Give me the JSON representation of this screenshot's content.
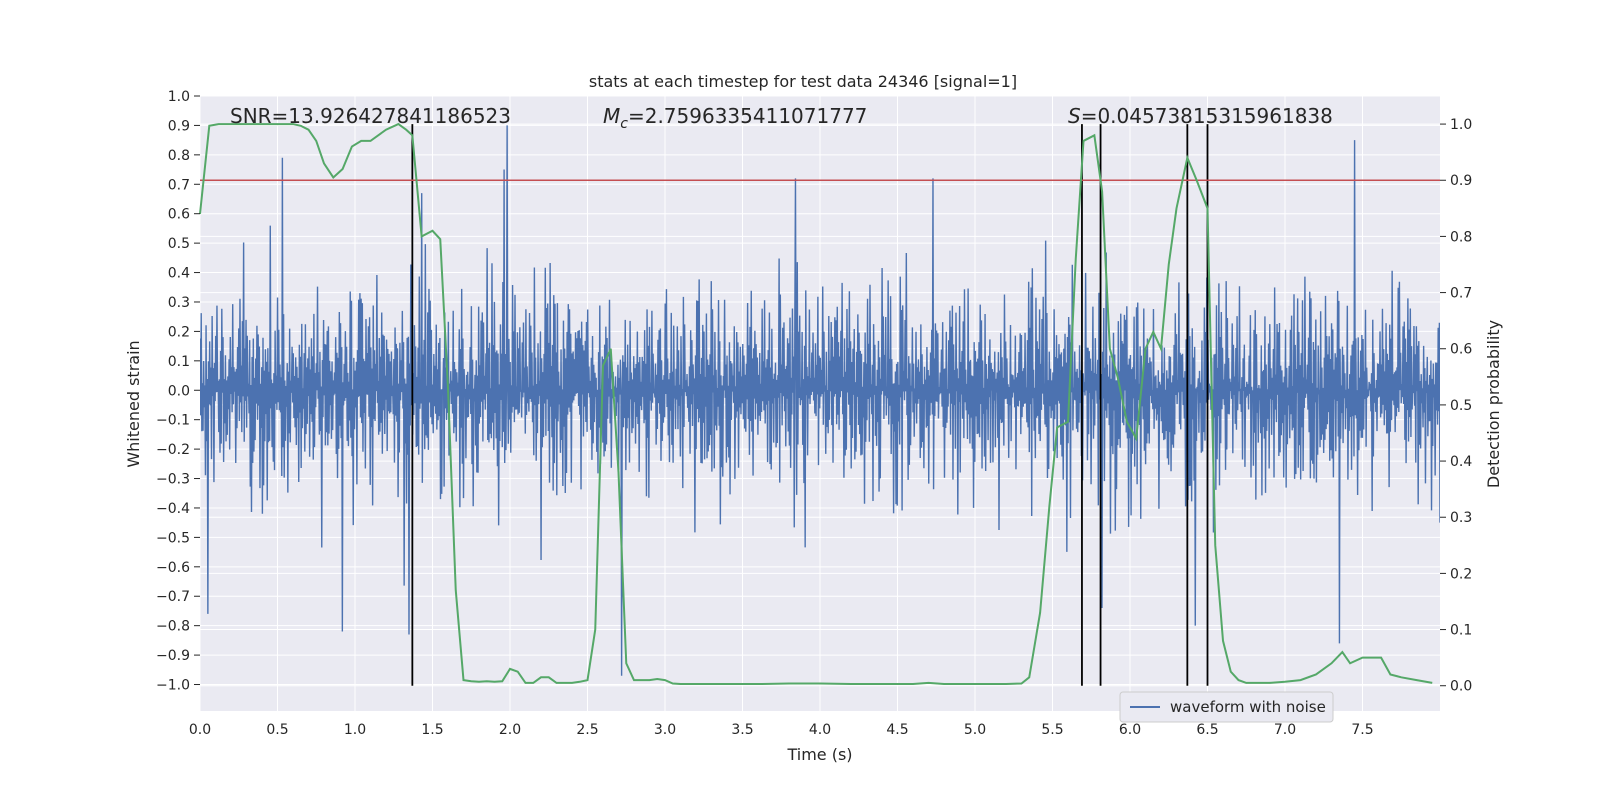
{
  "chart_data": {
    "type": "line",
    "title": "stats at each timestep for test data 24346 [signal=1]",
    "xlabel": "Time (s)",
    "ylabel": "Whitened strain",
    "y2label": "Detection probability",
    "xlim": [
      0.0,
      8.0
    ],
    "ylim": [
      -1.09,
      1.0
    ],
    "y2lim": [
      -0.045,
      1.05
    ],
    "x_ticks": [
      "0.0",
      "0.5",
      "1.0",
      "1.5",
      "2.0",
      "2.5",
      "3.0",
      "3.5",
      "4.0",
      "4.5",
      "5.0",
      "5.5",
      "6.0",
      "6.5",
      "7.0",
      "7.5"
    ],
    "y_ticks": [
      "1.0",
      "0.9",
      "0.8",
      "0.7",
      "0.6",
      "0.5",
      "0.4",
      "0.3",
      "0.2",
      "0.1",
      "0.0",
      "−0.1",
      "−0.2",
      "−0.3",
      "−0.4",
      "−0.5",
      "−0.6",
      "−0.7",
      "−0.8",
      "−0.9",
      "−1.0"
    ],
    "y2_ticks": [
      "1.0",
      "0.9",
      "0.8",
      "0.7",
      "0.6",
      "0.5",
      "0.4",
      "0.3",
      "0.2",
      "0.1",
      "0.0"
    ],
    "annotations": {
      "snr": "SNR=13.926427841186523",
      "mc": "=2.7596335411071777",
      "mc_symbol": "M",
      "mc_sub": "c",
      "s": "=0.04573815315961838",
      "s_symbol": "S"
    },
    "legend": {
      "label": "waveform with noise",
      "position": "lower-right"
    },
    "threshold": 0.9,
    "vertical_markers": [
      1.37,
      5.69,
      5.81,
      6.37,
      6.5
    ],
    "strain": {
      "name": "waveform with noise",
      "num_samples": 2048,
      "typical_amplitude": 0.4,
      "spikes": [
        {
          "x": 0.53,
          "y": 0.79
        },
        {
          "x": 1.96,
          "y": 0.75
        },
        {
          "x": 1.98,
          "y": 0.9
        },
        {
          "x": 2.72,
          "y": -0.97
        },
        {
          "x": 0.05,
          "y": -0.76
        },
        {
          "x": 0.92,
          "y": -0.82
        },
        {
          "x": 1.35,
          "y": -0.83
        },
        {
          "x": 3.84,
          "y": 0.72
        },
        {
          "x": 4.73,
          "y": 0.72
        },
        {
          "x": 7.45,
          "y": 0.85
        },
        {
          "x": 7.35,
          "y": -0.86
        },
        {
          "x": 6.42,
          "y": -0.8
        },
        {
          "x": 5.82,
          "y": -0.74
        },
        {
          "x": 1.43,
          "y": 0.67
        }
      ]
    },
    "probability": {
      "name": "Detection probability",
      "x": [
        0.0,
        0.06,
        0.12,
        0.2,
        0.3,
        0.4,
        0.5,
        0.6,
        0.65,
        0.7,
        0.75,
        0.8,
        0.86,
        0.92,
        0.98,
        1.04,
        1.1,
        1.2,
        1.28,
        1.33,
        1.37,
        1.43,
        1.5,
        1.55,
        1.6,
        1.65,
        1.7,
        1.75,
        1.8,
        1.85,
        1.9,
        1.95,
        2.0,
        2.05,
        2.1,
        2.15,
        2.2,
        2.25,
        2.3,
        2.35,
        2.4,
        2.45,
        2.5,
        2.55,
        2.6,
        2.65,
        2.7,
        2.75,
        2.8,
        2.85,
        2.9,
        2.95,
        3.0,
        3.05,
        3.1,
        3.2,
        3.4,
        3.6,
        3.8,
        4.0,
        4.2,
        4.4,
        4.6,
        4.7,
        4.8,
        5.0,
        5.2,
        5.3,
        5.35,
        5.42,
        5.48,
        5.53,
        5.6,
        5.65,
        5.7,
        5.77,
        5.82,
        5.87,
        5.92,
        5.98,
        6.04,
        6.1,
        6.15,
        6.2,
        6.25,
        6.3,
        6.37,
        6.43,
        6.5,
        6.55,
        6.6,
        6.65,
        6.7,
        6.75,
        6.8,
        6.9,
        7.0,
        7.1,
        7.2,
        7.3,
        7.37,
        7.42,
        7.5,
        7.55,
        7.62,
        7.68,
        7.75,
        7.85,
        7.95
      ],
      "y": [
        0.84,
        0.997,
        1.0,
        1.0,
        1.0,
        1.0,
        1.0,
        1.0,
        0.997,
        0.99,
        0.97,
        0.93,
        0.905,
        0.92,
        0.96,
        0.97,
        0.97,
        0.99,
        1.0,
        0.99,
        0.98,
        0.8,
        0.81,
        0.795,
        0.53,
        0.17,
        0.01,
        0.008,
        0.007,
        0.008,
        0.007,
        0.008,
        0.03,
        0.025,
        0.005,
        0.005,
        0.015,
        0.015,
        0.005,
        0.005,
        0.005,
        0.007,
        0.01,
        0.1,
        0.57,
        0.6,
        0.38,
        0.04,
        0.01,
        0.01,
        0.01,
        0.012,
        0.01,
        0.004,
        0.003,
        0.003,
        0.003,
        0.003,
        0.004,
        0.004,
        0.003,
        0.003,
        0.003,
        0.005,
        0.003,
        0.003,
        0.003,
        0.004,
        0.015,
        0.13,
        0.32,
        0.46,
        0.47,
        0.76,
        0.97,
        0.98,
        0.88,
        0.6,
        0.55,
        0.47,
        0.44,
        0.6,
        0.63,
        0.6,
        0.75,
        0.85,
        0.94,
        0.9,
        0.85,
        0.25,
        0.08,
        0.025,
        0.01,
        0.005,
        0.005,
        0.005,
        0.007,
        0.01,
        0.02,
        0.04,
        0.06,
        0.04,
        0.05,
        0.05,
        0.05,
        0.02,
        0.015,
        0.01,
        0.005
      ]
    },
    "colors": {
      "background": "#eaeaf2",
      "grid": "#ffffff",
      "strain": "#4c72b0",
      "probability": "#55a868",
      "threshold": "#c44e52",
      "marker": "#000000",
      "text": "#262626"
    }
  }
}
